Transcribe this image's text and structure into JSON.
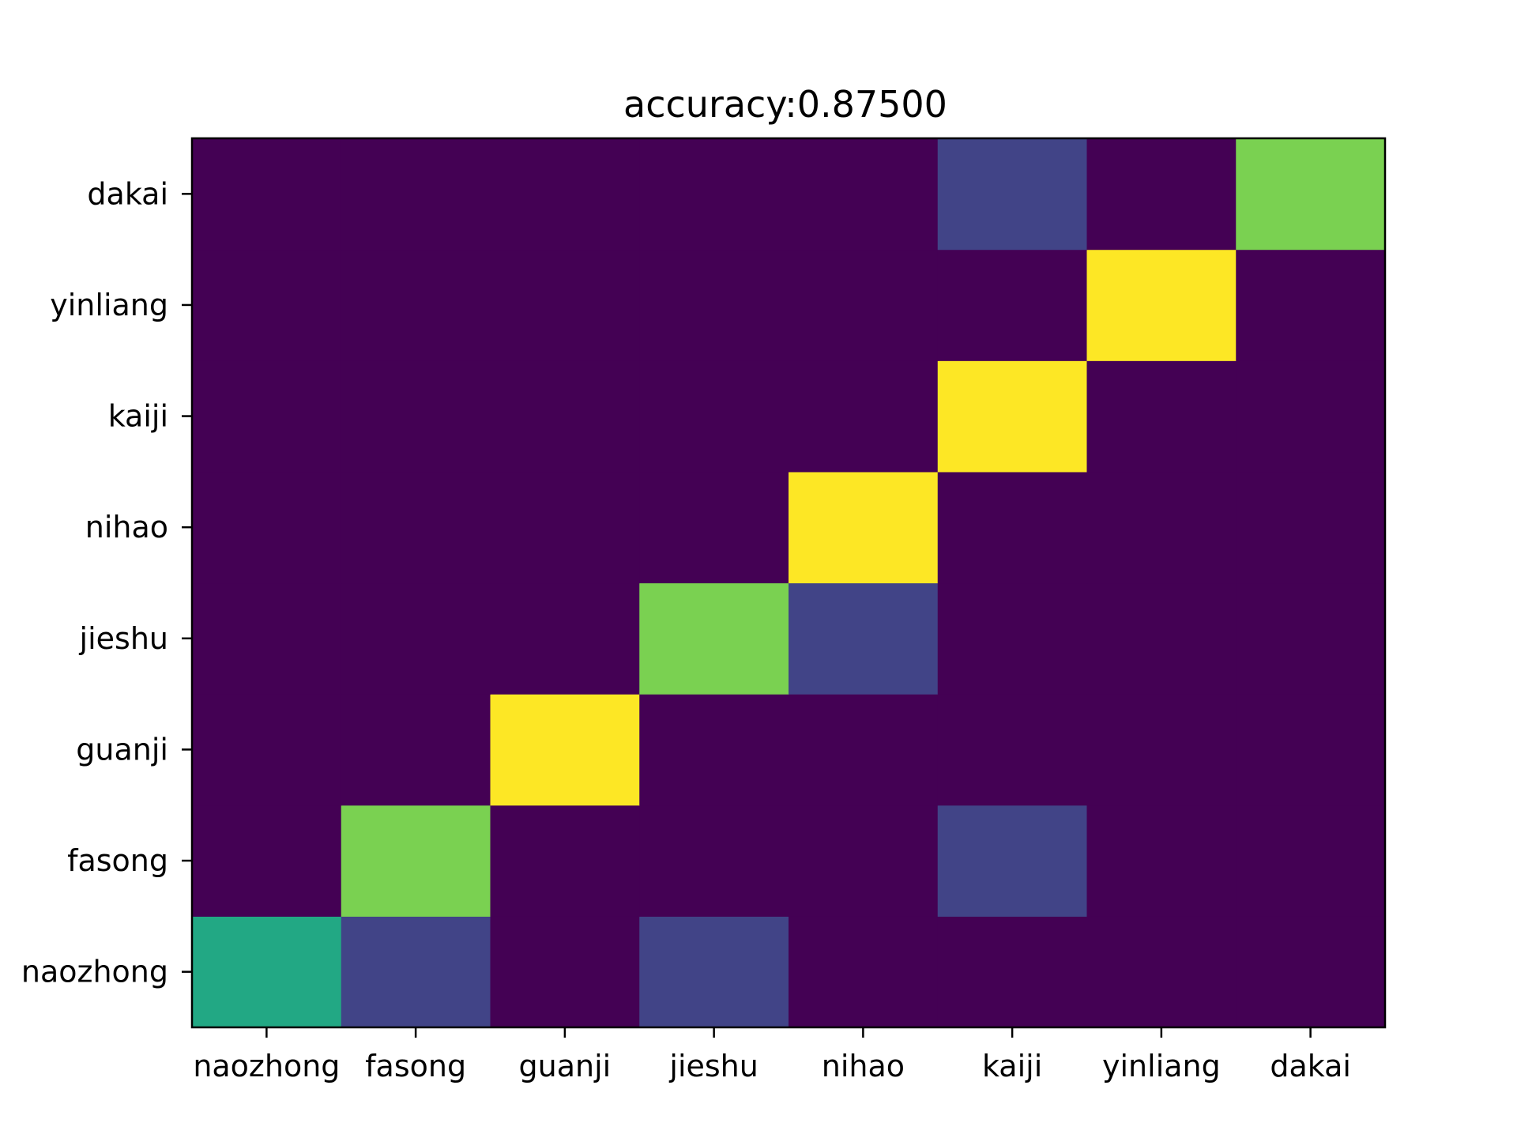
{
  "chart_data": {
    "type": "heatmap",
    "title": "accuracy:0.87500",
    "x_categories": [
      "naozhong",
      "fasong",
      "guanji",
      "jieshu",
      "nihao",
      "kaiji",
      "yinliang",
      "dakai"
    ],
    "y_categories": [
      "naozhong",
      "fasong",
      "guanji",
      "jieshu",
      "nihao",
      "kaiji",
      "yinliang",
      "dakai"
    ],
    "values": [
      [
        0.6,
        0.2,
        0.0,
        0.2,
        0.0,
        0.0,
        0.0,
        0.0
      ],
      [
        0.0,
        0.8,
        0.0,
        0.0,
        0.0,
        0.2,
        0.0,
        0.0
      ],
      [
        0.0,
        0.0,
        1.0,
        0.0,
        0.0,
        0.0,
        0.0,
        0.0
      ],
      [
        0.0,
        0.0,
        0.0,
        0.8,
        0.2,
        0.0,
        0.0,
        0.0
      ],
      [
        0.0,
        0.0,
        0.0,
        0.0,
        1.0,
        0.0,
        0.0,
        0.0
      ],
      [
        0.0,
        0.0,
        0.0,
        0.0,
        0.0,
        1.0,
        0.0,
        0.0
      ],
      [
        0.0,
        0.0,
        0.0,
        0.0,
        0.0,
        0.0,
        1.0,
        0.0
      ],
      [
        0.0,
        0.0,
        0.0,
        0.0,
        0.0,
        0.2,
        0.0,
        0.8
      ]
    ],
    "value_range": [
      0,
      1
    ],
    "colormap": "viridis",
    "colorbar": false,
    "grid": false,
    "xlabel": "",
    "ylabel": "",
    "y_axis_order": "bottom-to-top"
  }
}
